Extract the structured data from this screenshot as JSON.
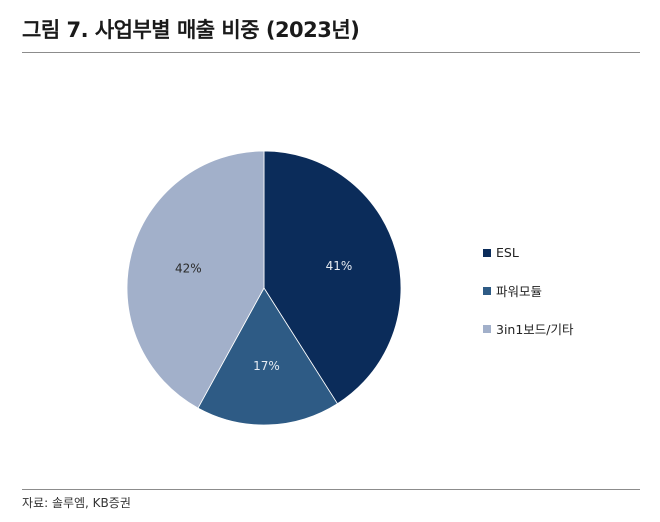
{
  "figure": {
    "title": "그림 7. 사업부별 매출 비중 (2023년)",
    "source": "자료: 솔루엠, KB증권"
  },
  "chart_data": {
    "type": "pie",
    "title": "그림 7. 사업부별 매출 비중 (2023년)",
    "slices": [
      {
        "name": "ESL",
        "value": 41,
        "label": "41%",
        "color": "#0b2c5a",
        "label_color": "#e6ebf2"
      },
      {
        "name": "파워모듈",
        "value": 17,
        "label": "17%",
        "color": "#2e5b85",
        "label_color": "#e6ebf2"
      },
      {
        "name": "3in1보드/기타",
        "value": 42,
        "label": "42%",
        "color": "#a2b0ca",
        "label_color": "#2b2b2b"
      }
    ],
    "start": "12 o'clock",
    "direction": "clockwise",
    "legend_position": "right"
  }
}
